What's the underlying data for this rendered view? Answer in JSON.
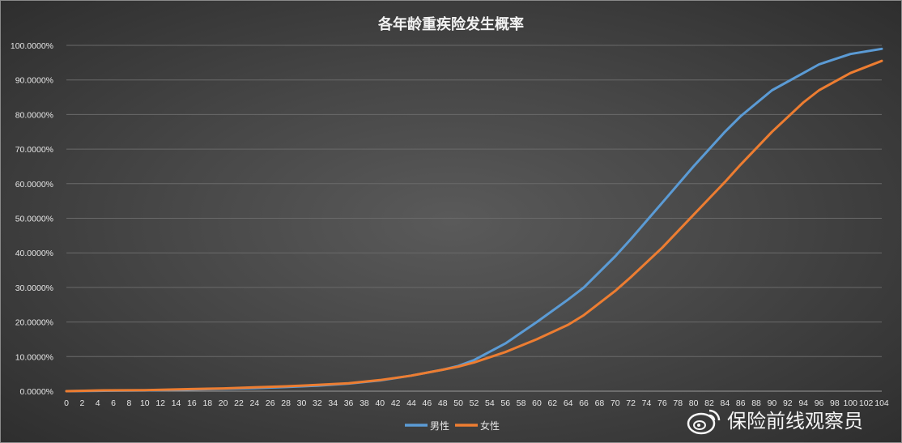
{
  "watermark": {
    "text": "保险前线观察员",
    "icon": "weibo-icon"
  },
  "chart_data": {
    "type": "line",
    "title": "各年龄重疾险发生概率",
    "xlabel": "",
    "ylabel": "",
    "ylim": [
      0,
      1
    ],
    "y_ticks": [
      "0.0000%",
      "10.0000%",
      "20.0000%",
      "30.0000%",
      "40.0000%",
      "50.0000%",
      "60.0000%",
      "70.0000%",
      "80.0000%",
      "90.0000%",
      "100.0000%"
    ],
    "x_ticks": [
      "0",
      "2",
      "4",
      "6",
      "8",
      "10",
      "12",
      "14",
      "16",
      "18",
      "20",
      "22",
      "24",
      "26",
      "28",
      "30",
      "32",
      "34",
      "36",
      "38",
      "40",
      "42",
      "44",
      "46",
      "48",
      "50",
      "52",
      "54",
      "56",
      "58",
      "60",
      "62",
      "64",
      "66",
      "68",
      "70",
      "72",
      "74",
      "76",
      "78",
      "80",
      "82",
      "84",
      "86",
      "88",
      "90",
      "92",
      "94",
      "96",
      "98",
      "100",
      "102",
      "104"
    ],
    "grid": true,
    "legend_position": "bottom",
    "background": "#474747",
    "series": [
      {
        "name": "男性",
        "color": "#5b9bd5",
        "x": [
          0,
          4,
          10,
          16,
          20,
          24,
          28,
          32,
          36,
          40,
          44,
          48,
          50,
          52,
          56,
          60,
          64,
          66,
          70,
          72,
          76,
          80,
          84,
          86,
          90,
          94,
          96,
          98,
          100,
          104
        ],
        "y": [
          0.0,
          0.001,
          0.002,
          0.005,
          0.007,
          0.009,
          0.012,
          0.016,
          0.022,
          0.031,
          0.045,
          0.062,
          0.073,
          0.09,
          0.138,
          0.2,
          0.265,
          0.3,
          0.39,
          0.44,
          0.545,
          0.65,
          0.75,
          0.795,
          0.87,
          0.92,
          0.945,
          0.96,
          0.975,
          0.99
        ]
      },
      {
        "name": "女性",
        "color": "#ed7d31",
        "x": [
          0,
          4,
          10,
          16,
          20,
          24,
          28,
          32,
          36,
          40,
          44,
          48,
          50,
          52,
          56,
          60,
          64,
          66,
          70,
          72,
          76,
          80,
          84,
          86,
          90,
          94,
          96,
          98,
          100,
          104
        ],
        "y": [
          0.0,
          0.002,
          0.003,
          0.006,
          0.008,
          0.011,
          0.014,
          0.018,
          0.023,
          0.032,
          0.045,
          0.062,
          0.071,
          0.083,
          0.113,
          0.15,
          0.192,
          0.22,
          0.29,
          0.33,
          0.415,
          0.51,
          0.605,
          0.655,
          0.75,
          0.835,
          0.87,
          0.895,
          0.92,
          0.955
        ]
      }
    ]
  }
}
